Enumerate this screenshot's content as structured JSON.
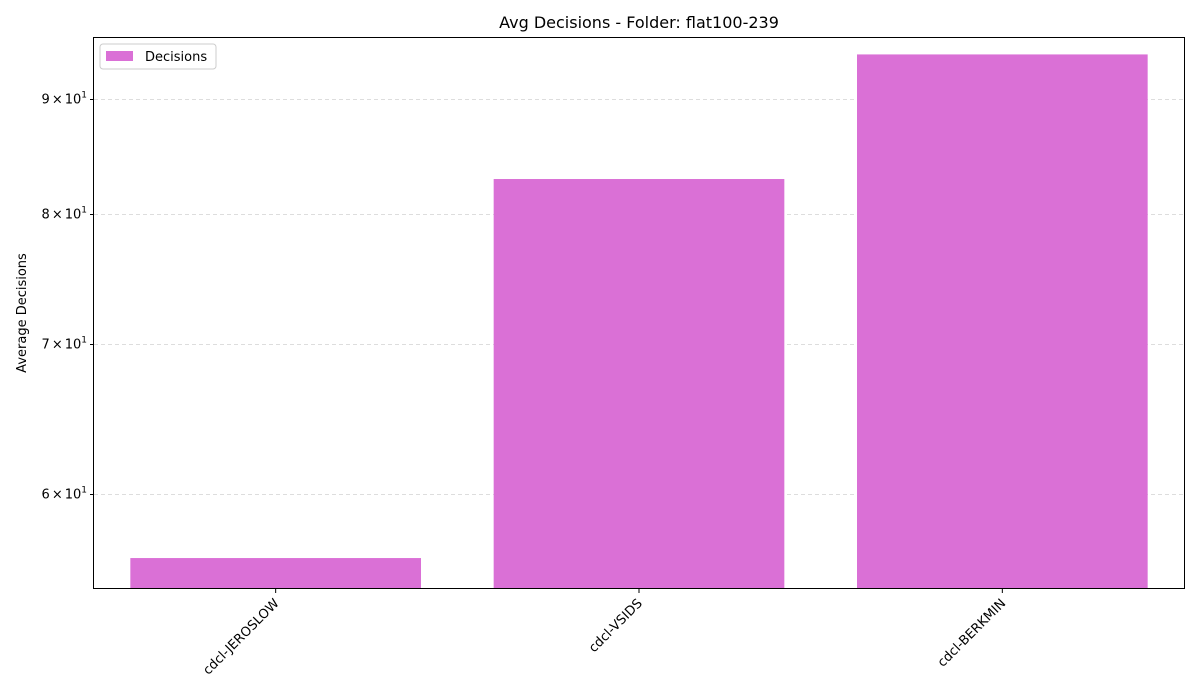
{
  "chart_data": {
    "type": "bar",
    "title": "Avg Decisions - Folder: flat100-239",
    "xlabel": "",
    "ylabel": "Average Decisions",
    "yscale": "log",
    "ylim": [
      54.5,
      95.8
    ],
    "categories": [
      "cdcl-JEROSLOW",
      "cdcl-VSIDS",
      "cdcl-BERKMIN"
    ],
    "series": [
      {
        "name": "Decisions",
        "values": [
          56.2,
          82.9,
          94.2
        ]
      }
    ],
    "yticks": [
      {
        "value": 60,
        "mantissa": "6",
        "exponent": "1"
      },
      {
        "value": 70,
        "mantissa": "7",
        "exponent": "1"
      },
      {
        "value": 80,
        "mantissa": "8",
        "exponent": "1"
      },
      {
        "value": 90,
        "mantissa": "9",
        "exponent": "1"
      }
    ],
    "times_symbol": "×",
    "base": "10",
    "grid": "y-dashed",
    "legend_position": "top-left",
    "colors": {
      "bar": "#da70d6",
      "grid": "#dddddd",
      "axis": "#000000"
    }
  }
}
